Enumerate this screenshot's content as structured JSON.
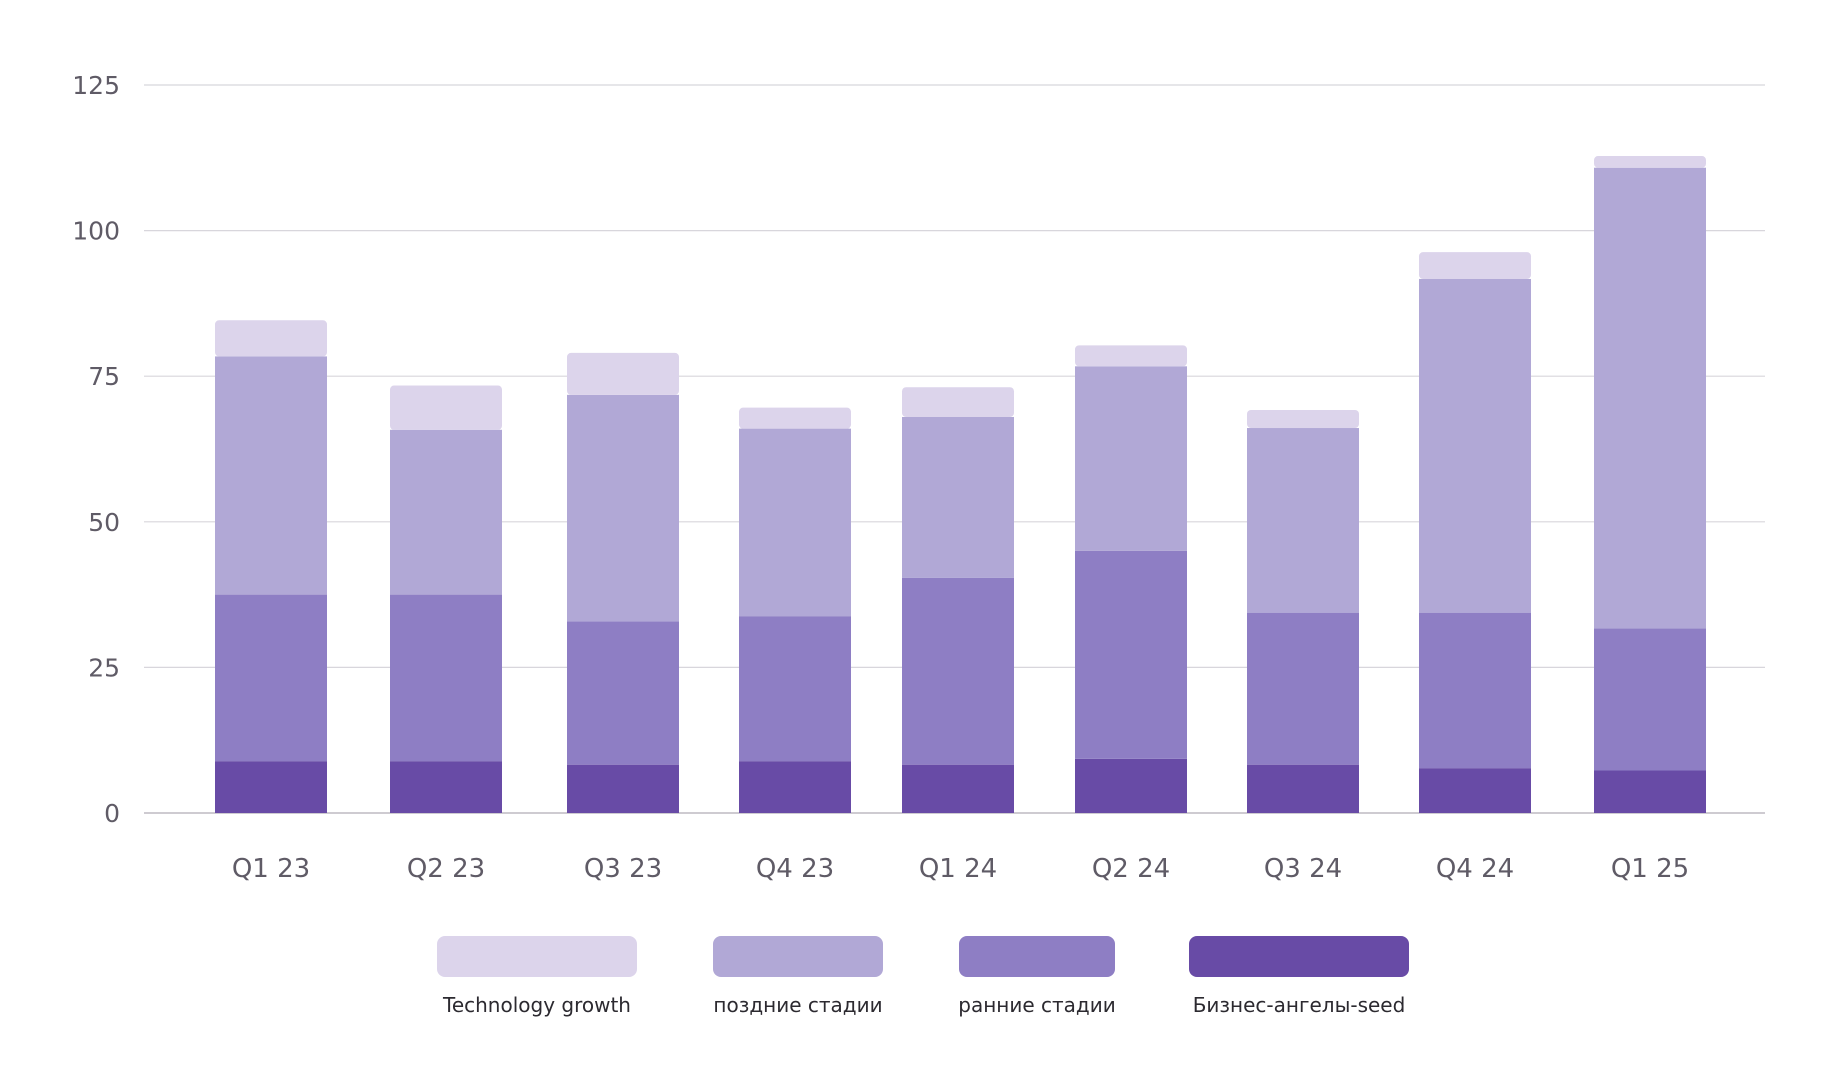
{
  "chart_data": {
    "type": "bar",
    "stacked": true,
    "categories": [
      "Q1 23",
      "Q2 23",
      "Q3 23",
      "Q4 23",
      "Q1 24",
      "Q2 24",
      "Q3 24",
      "Q4 24",
      "Q1 25"
    ],
    "series": [
      {
        "name": "Бизнес-ангелы-seed",
        "color": "#684ba6",
        "values": [
          8.9,
          8.9,
          8.3,
          8.9,
          8.3,
          9.3,
          8.3,
          7.7,
          7.3
        ]
      },
      {
        "name": "ранние стадии",
        "color": "#8e7ec4",
        "values": [
          28.6,
          28.6,
          24.6,
          24.9,
          32.1,
          35.7,
          26.1,
          26.7,
          24.4
        ]
      },
      {
        "name": "поздние стадии",
        "color": "#b1a8d6",
        "values": [
          40.9,
          28.3,
          38.9,
          32.2,
          27.6,
          31.7,
          31.7,
          57.3,
          79.1
        ]
      },
      {
        "name": "Technology growth",
        "color": "#dcd4eb",
        "values": [
          6.2,
          7.6,
          7.2,
          3.6,
          5.1,
          3.6,
          3.1,
          4.6,
          2.0
        ]
      }
    ],
    "legend_order": [
      "Technology growth",
      "поздние стадии",
      "ранние стадии",
      "Бизнес-ангелы-seed"
    ],
    "y_ticks": [
      "0",
      "25",
      "50",
      "75",
      "100",
      "125"
    ],
    "ylim": [
      0,
      125
    ],
    "grid": true,
    "legend_position": "bottom",
    "title": "",
    "xlabel": "",
    "ylabel": ""
  }
}
